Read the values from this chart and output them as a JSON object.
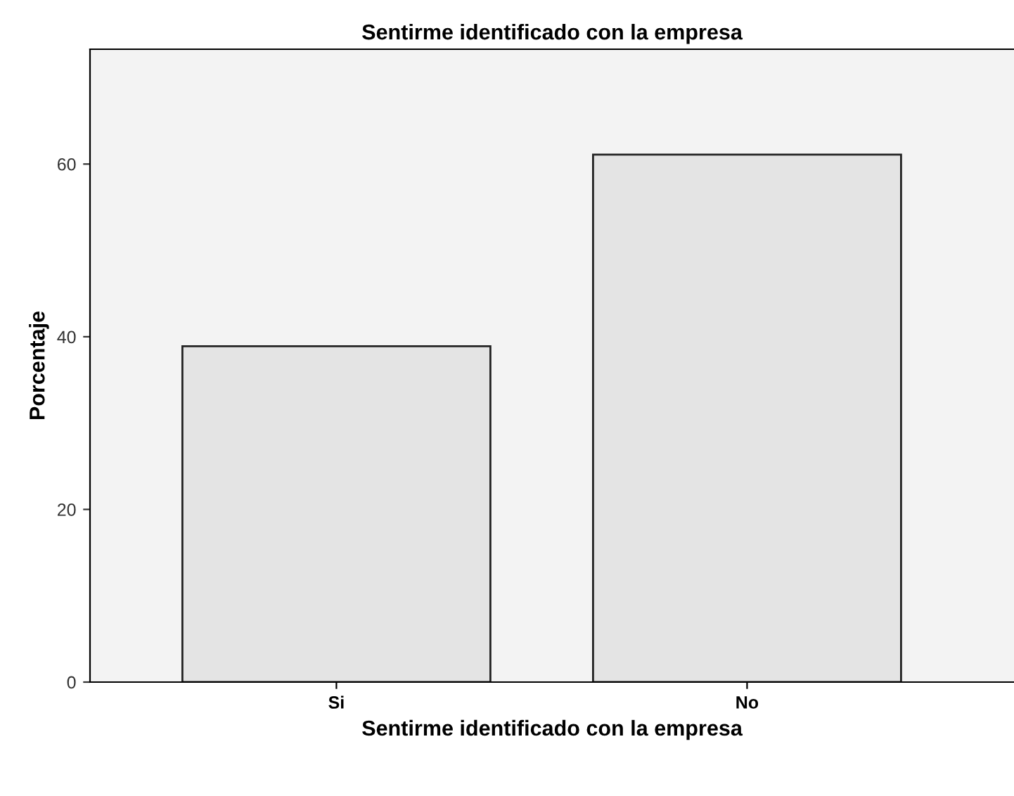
{
  "chart_data": {
    "type": "bar",
    "title": "Sentirme identificado con la empresa",
    "xlabel": "Sentirme identificado con la empresa",
    "ylabel": "Porcentaje",
    "categories": [
      "Si",
      "No"
    ],
    "values": [
      38.9,
      61.1
    ],
    "color": "#e4e4e4",
    "ylim": [
      0,
      73.3
    ],
    "yticks": [
      0,
      20,
      40,
      60
    ],
    "grid": false,
    "legend": false
  }
}
